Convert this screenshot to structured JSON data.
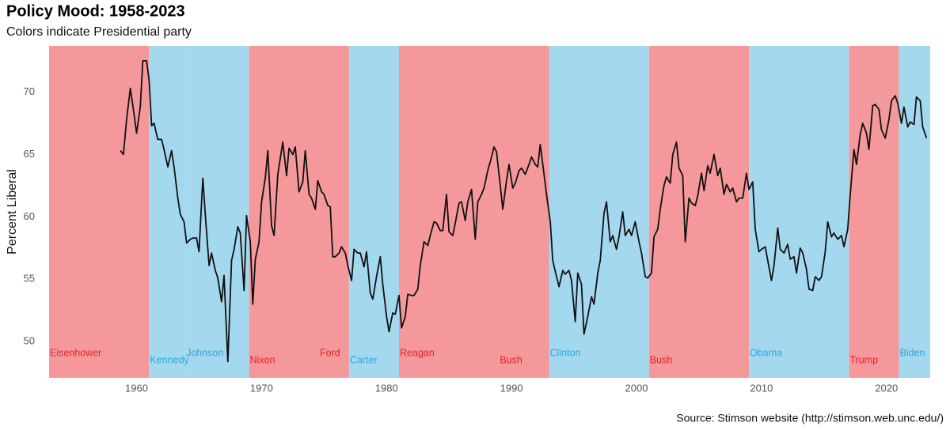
{
  "chart_data": {
    "type": "line",
    "title": "Policy Mood: 1958-2023",
    "subtitle": "Colors indicate Presidential party",
    "y_label": "Percent Liberal",
    "source": "Source: Stimson website (http://stimson.web.unc.edu/)",
    "xlim": [
      1953,
      2023.5
    ],
    "ylim": [
      47.1,
      73.7
    ],
    "xticks": [
      1960,
      1970,
      1980,
      1990,
      2000,
      2010,
      2020
    ],
    "yticks": [
      50,
      55,
      60,
      65,
      70
    ],
    "line_color": "#111111",
    "presidents": [
      {
        "name": "Eisenhower",
        "start": 1953,
        "color": "#f4989b",
        "label_color": "#e8222a"
      },
      {
        "name": "Kennedy",
        "start": 1961,
        "color": "#a4d8ef",
        "label_color": "#2aa8df"
      },
      {
        "name": "Johnson",
        "start": 1963.9,
        "color": "#a4d8ef",
        "label_color": "#2aa8df"
      },
      {
        "name": "Nixon",
        "start": 1969,
        "color": "#f4989b",
        "label_color": "#e8222a"
      },
      {
        "name": "Ford",
        "start": 1974.6,
        "color": "#f4989b",
        "label_color": "#e8222a"
      },
      {
        "name": "Carter",
        "start": 1977,
        "color": "#a4d8ef",
        "label_color": "#2aa8df"
      },
      {
        "name": "Reagan",
        "start": 1981,
        "color": "#f4989b",
        "label_color": "#e8222a"
      },
      {
        "name": "Bush",
        "start": 1989,
        "color": "#f4989b",
        "label_color": "#e8222a"
      },
      {
        "name": "Clinton",
        "start": 1993,
        "color": "#a4d8ef",
        "label_color": "#2aa8df"
      },
      {
        "name": "Bush",
        "start": 2001,
        "color": "#f4989b",
        "label_color": "#e8222a"
      },
      {
        "name": "Obama",
        "start": 2009,
        "color": "#a4d8ef",
        "label_color": "#2aa8df"
      },
      {
        "name": "Trump",
        "start": 2017,
        "color": "#f4989b",
        "label_color": "#e8222a"
      },
      {
        "name": "Biden",
        "start": 2021,
        "color": "#a4d8ef",
        "label_color": "#2aa8df"
      }
    ],
    "x": [
      1958.7,
      1958.95,
      1959.2,
      1959.5,
      1959.8,
      1960.0,
      1960.3,
      1960.5,
      1960.8,
      1961.0,
      1961.2,
      1961.4,
      1961.7,
      1962.0,
      1962.2,
      1962.5,
      1962.8,
      1963.0,
      1963.3,
      1963.5,
      1963.8,
      1964.0,
      1964.3,
      1964.5,
      1964.8,
      1965.0,
      1965.3,
      1965.5,
      1965.8,
      1966.0,
      1966.3,
      1966.5,
      1966.8,
      1967.0,
      1967.3,
      1967.6,
      1967.8,
      1968.1,
      1968.3,
      1968.6,
      1968.8,
      1969.1,
      1969.3,
      1969.5,
      1969.8,
      1970.0,
      1970.3,
      1970.5,
      1970.8,
      1971.0,
      1971.3,
      1971.5,
      1971.7,
      1972.0,
      1972.2,
      1972.5,
      1972.7,
      1973.0,
      1973.3,
      1973.5,
      1973.8,
      1974.0,
      1974.3,
      1974.5,
      1974.8,
      1975.0,
      1975.3,
      1975.5,
      1975.7,
      1975.9,
      1976.2,
      1976.4,
      1976.7,
      1976.9,
      1977.2,
      1977.4,
      1977.7,
      1977.9,
      1978.2,
      1978.4,
      1978.7,
      1978.9,
      1979.2,
      1979.5,
      1979.7,
      1980.0,
      1980.2,
      1980.5,
      1980.7,
      1981.0,
      1981.2,
      1981.5,
      1981.7,
      1982.0,
      1982.2,
      1982.5,
      1982.7,
      1983.0,
      1983.3,
      1983.5,
      1983.8,
      1984.0,
      1984.3,
      1984.5,
      1984.8,
      1985.0,
      1985.3,
      1985.5,
      1985.8,
      1986.0,
      1986.3,
      1986.5,
      1986.8,
      1987.1,
      1987.3,
      1987.6,
      1987.8,
      1988.1,
      1988.3,
      1988.6,
      1988.8,
      1989.1,
      1989.3,
      1989.6,
      1989.8,
      1990.1,
      1990.3,
      1990.6,
      1990.8,
      1991.1,
      1991.4,
      1991.6,
      1991.9,
      1992.1,
      1992.3,
      1992.6,
      1992.8,
      1993.1,
      1993.3,
      1993.6,
      1993.8,
      1994.1,
      1994.3,
      1994.6,
      1994.8,
      1995.1,
      1995.3,
      1995.6,
      1995.8,
      1996.1,
      1996.4,
      1996.6,
      1996.9,
      1997.1,
      1997.4,
      1997.6,
      1997.9,
      1998.1,
      1998.4,
      1998.6,
      1998.9,
      1999.1,
      1999.4,
      1999.6,
      1999.9,
      2000.2,
      2000.4,
      2000.7,
      2000.9,
      2001.2,
      2001.4,
      2001.7,
      2001.9,
      2002.2,
      2002.4,
      2002.7,
      2002.9,
      2003.2,
      2003.4,
      2003.7,
      2003.9,
      2004.2,
      2004.4,
      2004.7,
      2004.9,
      2005.2,
      2005.4,
      2005.7,
      2005.9,
      2006.2,
      2006.5,
      2006.7,
      2007.0,
      2007.2,
      2007.5,
      2007.7,
      2008.0,
      2008.2,
      2008.5,
      2008.8,
      2009.0,
      2009.3,
      2009.5,
      2009.8,
      2010.0,
      2010.3,
      2010.5,
      2010.8,
      2011.0,
      2011.3,
      2011.5,
      2011.8,
      2012.1,
      2012.3,
      2012.6,
      2012.8,
      2013.1,
      2013.3,
      2013.6,
      2013.8,
      2014.1,
      2014.3,
      2014.6,
      2014.8,
      2015.1,
      2015.3,
      2015.6,
      2015.8,
      2016.1,
      2016.4,
      2016.6,
      2016.9,
      2017.1,
      2017.4,
      2017.6,
      2017.9,
      2018.1,
      2018.4,
      2018.6,
      2018.9,
      2019.1,
      2019.4,
      2019.6,
      2019.9,
      2020.2,
      2020.4,
      2020.7,
      2020.9,
      2021.2,
      2021.4,
      2021.7,
      2021.9,
      2022.2,
      2022.4,
      2022.7,
      2022.9,
      2023.2
    ],
    "values": [
      65.3,
      65.0,
      67.8,
      70.3,
      68.2,
      66.7,
      68.8,
      72.5,
      72.5,
      71.0,
      67.3,
      67.5,
      66.2,
      66.2,
      65.4,
      64.0,
      65.3,
      64.0,
      61.5,
      60.2,
      59.6,
      57.9,
      58.2,
      58.3,
      58.3,
      57.2,
      63.1,
      60.2,
      56.1,
      57.1,
      55.7,
      55.1,
      53.2,
      55.3,
      48.4,
      56.5,
      57.4,
      59.2,
      58.7,
      54.1,
      60.1,
      58.0,
      53.0,
      56.6,
      58.0,
      61.2,
      63.1,
      65.3,
      59.3,
      58.5,
      63.4,
      64.7,
      66.0,
      63.3,
      65.5,
      65.0,
      65.6,
      62.0,
      62.8,
      65.3,
      61.8,
      61.5,
      60.6,
      62.9,
      62.0,
      61.8,
      60.9,
      60.8,
      56.8,
      56.8,
      57.1,
      57.6,
      57.1,
      56.1,
      54.9,
      57.4,
      57.1,
      57.1,
      56.0,
      57.2,
      53.9,
      53.4,
      55.2,
      56.8,
      54.6,
      52.0,
      50.8,
      52.3,
      52.2,
      53.7,
      51.1,
      52.0,
      53.8,
      53.7,
      53.7,
      54.2,
      56.1,
      58.0,
      57.7,
      58.5,
      59.6,
      59.5,
      58.9,
      58.9,
      61.8,
      58.8,
      58.5,
      59.5,
      61.1,
      61.2,
      59.7,
      61.2,
      62.2,
      58.2,
      61.2,
      61.8,
      62.3,
      63.7,
      64.4,
      65.6,
      65.2,
      62.5,
      60.6,
      62.9,
      64.2,
      62.3,
      62.7,
      63.7,
      63.9,
      63.4,
      64.2,
      64.8,
      64.2,
      64.0,
      65.8,
      63.4,
      61.8,
      59.6,
      56.5,
      55.2,
      54.4,
      55.7,
      55.4,
      55.7,
      54.9,
      51.6,
      55.5,
      54.6,
      50.6,
      52.0,
      53.6,
      53.0,
      55.5,
      56.5,
      60.3,
      61.2,
      58.0,
      58.5,
      57.4,
      58.4,
      60.4,
      58.5,
      59.0,
      58.5,
      59.6,
      58.0,
      57.1,
      55.2,
      55.1,
      55.5,
      58.4,
      59.0,
      60.6,
      62.5,
      63.2,
      62.7,
      65.0,
      66.0,
      63.9,
      63.3,
      58.0,
      61.5,
      61.1,
      60.9,
      61.7,
      63.5,
      62.1,
      64.1,
      63.5,
      65.0,
      63.3,
      63.9,
      61.8,
      62.6,
      62.0,
      62.3,
      61.2,
      61.5,
      61.5,
      63.5,
      62.2,
      62.8,
      59.0,
      57.2,
      57.4,
      57.6,
      56.5,
      54.9,
      56.1,
      59.1,
      57.4,
      57.1,
      57.8,
      56.6,
      56.8,
      55.5,
      57.5,
      57.1,
      55.8,
      54.2,
      54.1,
      55.2,
      54.9,
      55.2,
      57.2,
      59.6,
      58.4,
      58.7,
      58.2,
      58.5,
      57.6,
      59.0,
      61.8,
      65.4,
      64.2,
      66.6,
      67.5,
      66.7,
      65.4,
      68.9,
      69.0,
      68.6,
      67.0,
      66.3,
      67.8,
      69.3,
      69.7,
      69.1,
      67.5,
      68.8,
      67.2,
      67.6,
      67.4,
      69.6,
      69.3,
      67.2,
      66.3
    ]
  }
}
